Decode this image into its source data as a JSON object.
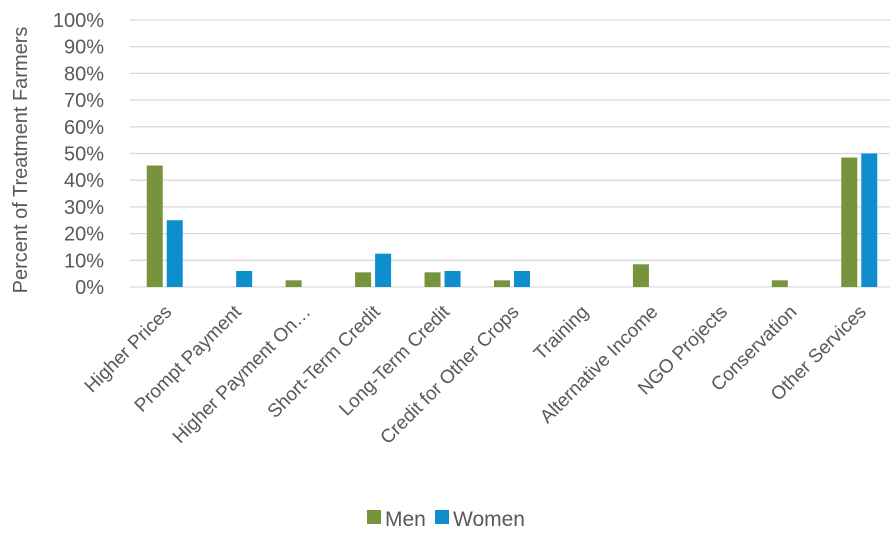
{
  "chart_data": {
    "type": "bar",
    "ylabel": "Percent of Treatment Farmers",
    "xlabel": "",
    "ylim": [
      0,
      100
    ],
    "y_tick_labels": [
      "0%",
      "10%",
      "20%",
      "30%",
      "40%",
      "50%",
      "60%",
      "70%",
      "80%",
      "90%",
      "100%"
    ],
    "grid": true,
    "legend_position": "bottom",
    "categories": [
      "Higher Prices",
      "Prompt Payment",
      "Higher Payment On…",
      "Short-Term Credit",
      "Long-Term Credit",
      "Credit for Other Crops",
      "Training",
      "Alternative Income",
      "NGO Projects",
      "Conservation",
      "Other Services"
    ],
    "series": [
      {
        "name": "Men",
        "color": "#77933c",
        "values": [
          45.5,
          0,
          2.5,
          5.5,
          5.5,
          2.5,
          0,
          8.5,
          0,
          2.5,
          48.5
        ]
      },
      {
        "name": "Women",
        "color": "#0f8ece",
        "values": [
          25,
          6,
          0,
          12.5,
          6,
          6,
          0,
          0,
          0,
          0,
          50
        ]
      }
    ]
  }
}
